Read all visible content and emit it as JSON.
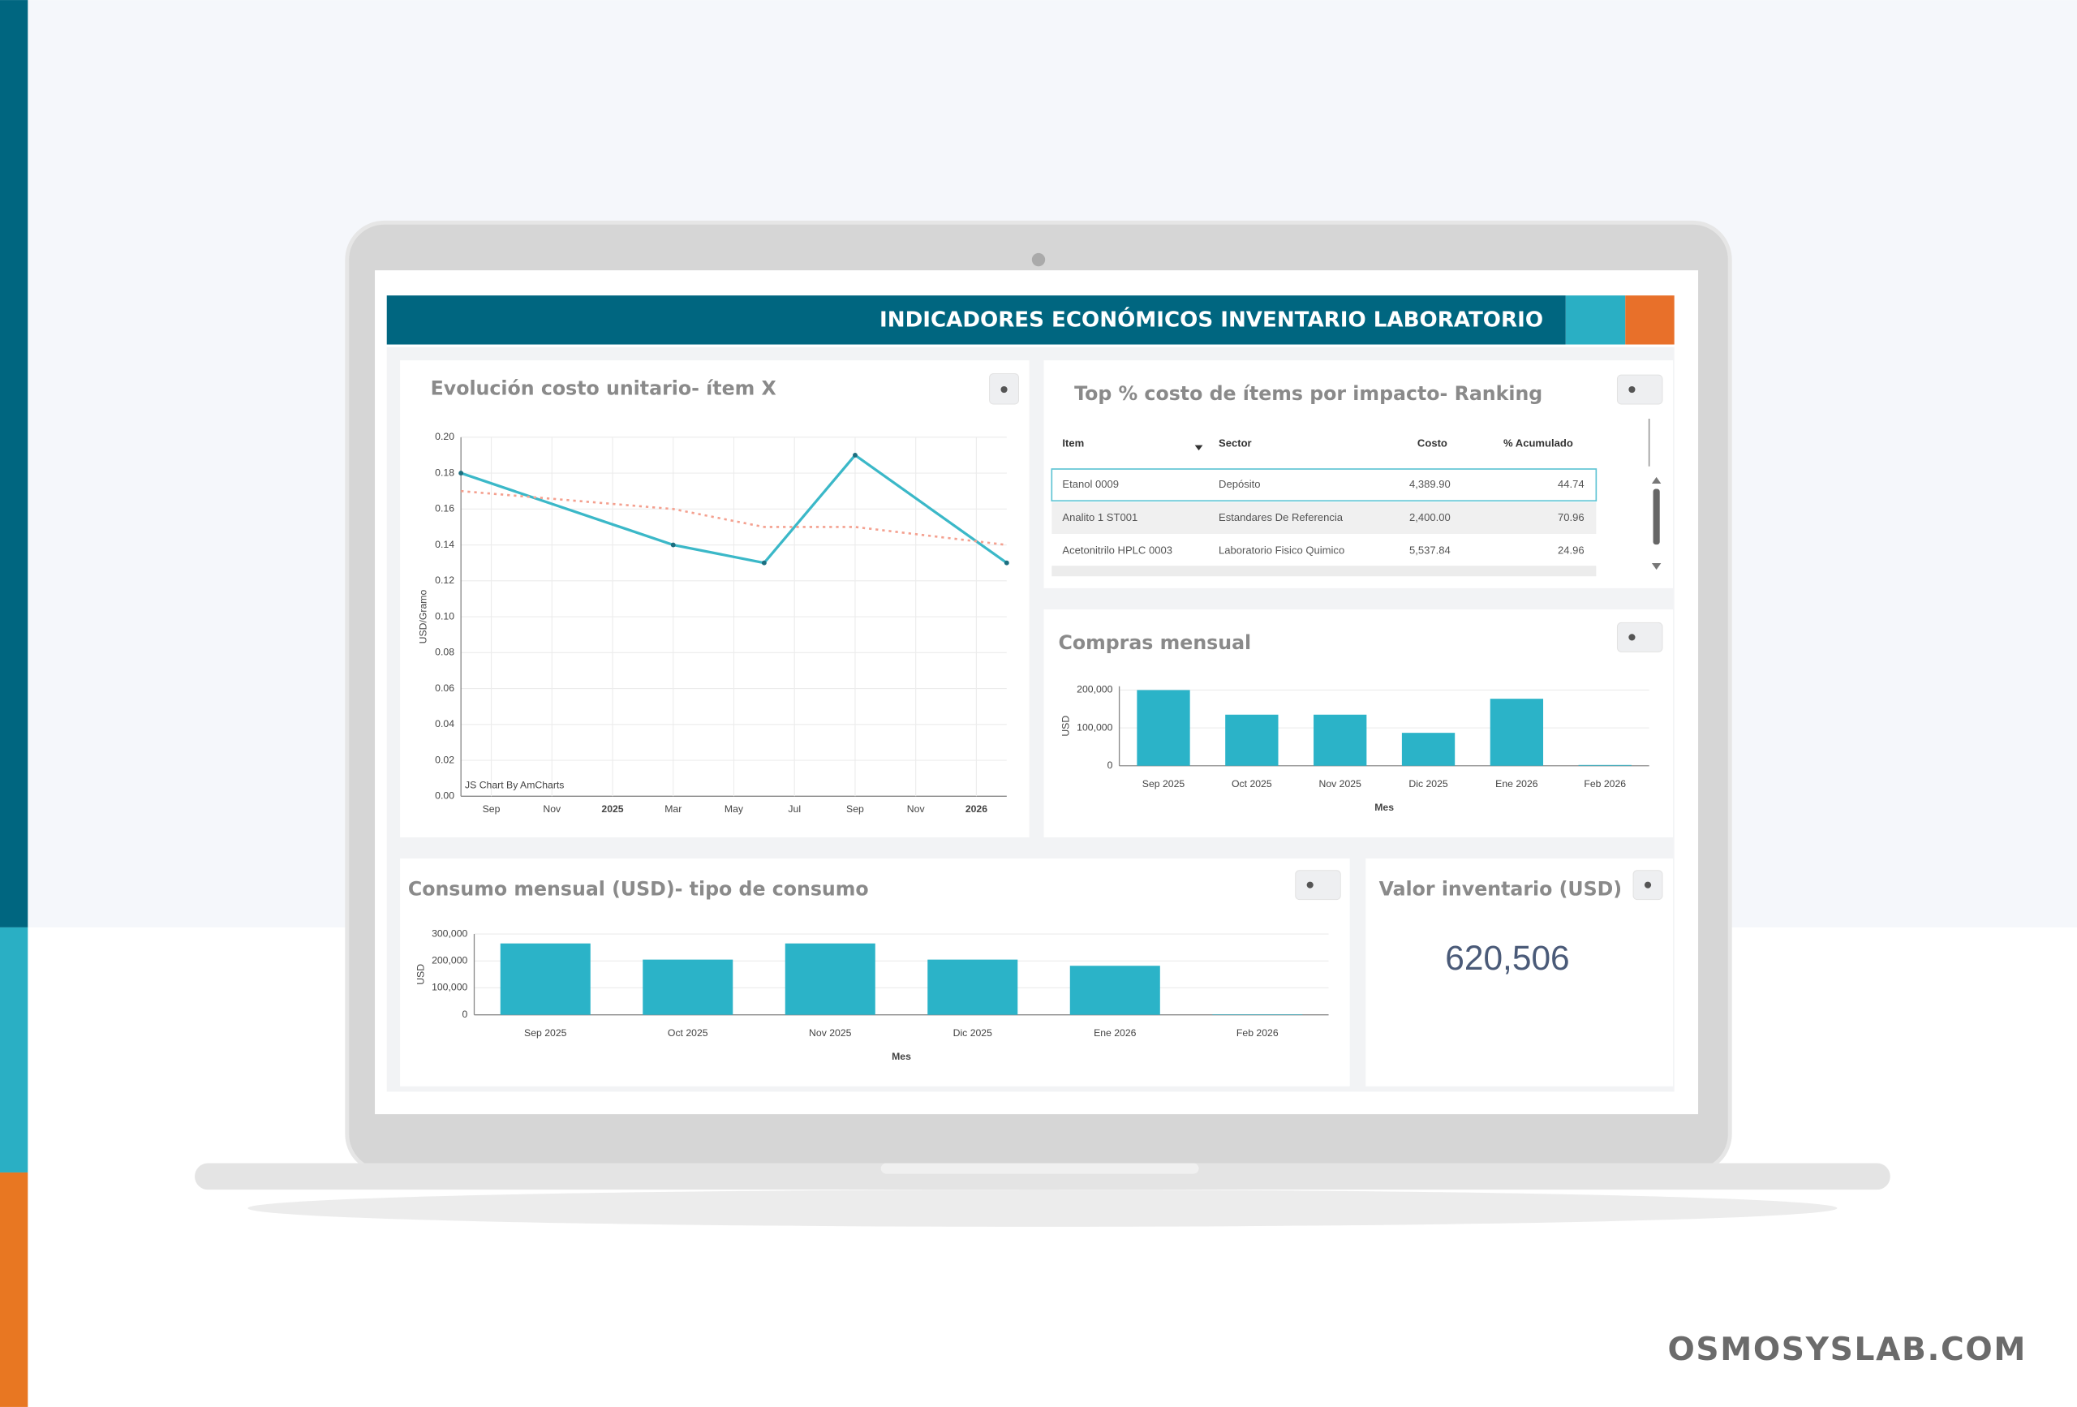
{
  "header": {
    "title": "INDICADORES ECONÓMICOS INVENTARIO LABORATORIO"
  },
  "unit_cost": {
    "title": "Evolución costo unitario- ítem X",
    "watermark": "JS Chart By AmCharts",
    "chart": {
      "type": "line",
      "y_label": "USD/Gramo",
      "x": [
        "2024-08",
        "2025-03",
        "2025-06",
        "2025-09",
        "2026-02"
      ],
      "series": [
        {
          "color": "#3bb8c8",
          "style": "solid",
          "values": [
            0.18,
            0.14,
            0.13,
            0.19,
            0.13
          ]
        },
        {
          "color": "#f4a08f",
          "style": "dotted",
          "values": [
            0.17,
            0.16,
            0.15,
            0.15,
            0.14
          ]
        }
      ],
      "xlim": [
        "2024-08",
        "2026-02"
      ],
      "xticks": [
        {
          "value": "2024-09",
          "label": "Sep"
        },
        {
          "value": "2024-11",
          "label": "Nov"
        },
        {
          "value": "2025-01",
          "label": "2025"
        },
        {
          "value": "2025-03",
          "label": "Mar"
        },
        {
          "value": "2025-05",
          "label": "May"
        },
        {
          "value": "2025-07",
          "label": "Jul"
        },
        {
          "value": "2025-09",
          "label": "Sep"
        },
        {
          "value": "2025-11",
          "label": "Nov"
        },
        {
          "value": "2026-01",
          "label": "2026"
        }
      ],
      "ylim": [
        0,
        0.2
      ],
      "yticks": [
        {
          "value": 0,
          "label": "0.00"
        },
        {
          "value": 0.02,
          "label": "0.02"
        },
        {
          "value": 0.04,
          "label": "0.04"
        },
        {
          "value": 0.06,
          "label": "0.06"
        },
        {
          "value": 0.08,
          "label": "0.08"
        },
        {
          "value": 0.1,
          "label": "0.10"
        },
        {
          "value": 0.12,
          "label": "0.12"
        },
        {
          "value": 0.14,
          "label": "0.14"
        },
        {
          "value": 0.16,
          "label": "0.16"
        },
        {
          "value": 0.18,
          "label": "0.18"
        },
        {
          "value": 0.2,
          "label": "0.20"
        }
      ],
      "grid": true
    }
  },
  "ranking": {
    "title": "Top % costo de ítems por impacto- Ranking",
    "columns": [
      "Item",
      "Sector",
      "Costo",
      "% Acumulado"
    ],
    "rows": [
      [
        "Etanol 0009",
        "Depósito",
        "4,389.90",
        "44.74"
      ],
      [
        "Analito 1 ST001",
        "Estandares De Referencia",
        "2,400.00",
        "70.96"
      ],
      [
        "Acetonitrilo HPLC 0003",
        "Laboratorio Fisico Quimico",
        "5,537.84",
        "24.96"
      ]
    ]
  },
  "purchases": {
    "title": "Compras mensual",
    "chart": {
      "type": "bar",
      "x_label": "Mes",
      "y_label": "USD",
      "categories": [
        "Sep 2025",
        "Oct 2025",
        "Nov 2025",
        "Dic 2025",
        "Ene 2026",
        "Feb 2026"
      ],
      "values": [
        200000,
        135000,
        135000,
        87000,
        177000,
        2000
      ],
      "color": "#2bb3c8",
      "ylim": [
        0,
        210000
      ],
      "yticks": [
        0,
        {
          "value": 100000,
          "label": "100,000"
        },
        {
          "value": 200000,
          "label": "200,000"
        }
      ],
      "grid": true
    }
  },
  "consumption": {
    "title": "Consumo mensual (USD)- tipo de consumo",
    "chart": {
      "type": "bar",
      "x_label": "Mes",
      "y_label": "USD",
      "categories": [
        "Sep 2025",
        "Oct 2025",
        "Nov 2025",
        "Dic 2025",
        "Ene 2026",
        "Feb 2026"
      ],
      "values": [
        265000,
        205000,
        265000,
        205000,
        182000,
        2000
      ],
      "color": "#2bb3c8",
      "ylim": [
        0,
        300000
      ],
      "yticks": [
        0,
        {
          "value": 100000,
          "label": "100,000"
        },
        {
          "value": 200000,
          "label": "200,000"
        },
        {
          "value": 300000,
          "label": "300,000"
        }
      ],
      "grid": true
    }
  },
  "inventory": {
    "title": "Valor inventario (USD)",
    "value": "620,506"
  },
  "brand": "OSMOSYSLAB.COM"
}
